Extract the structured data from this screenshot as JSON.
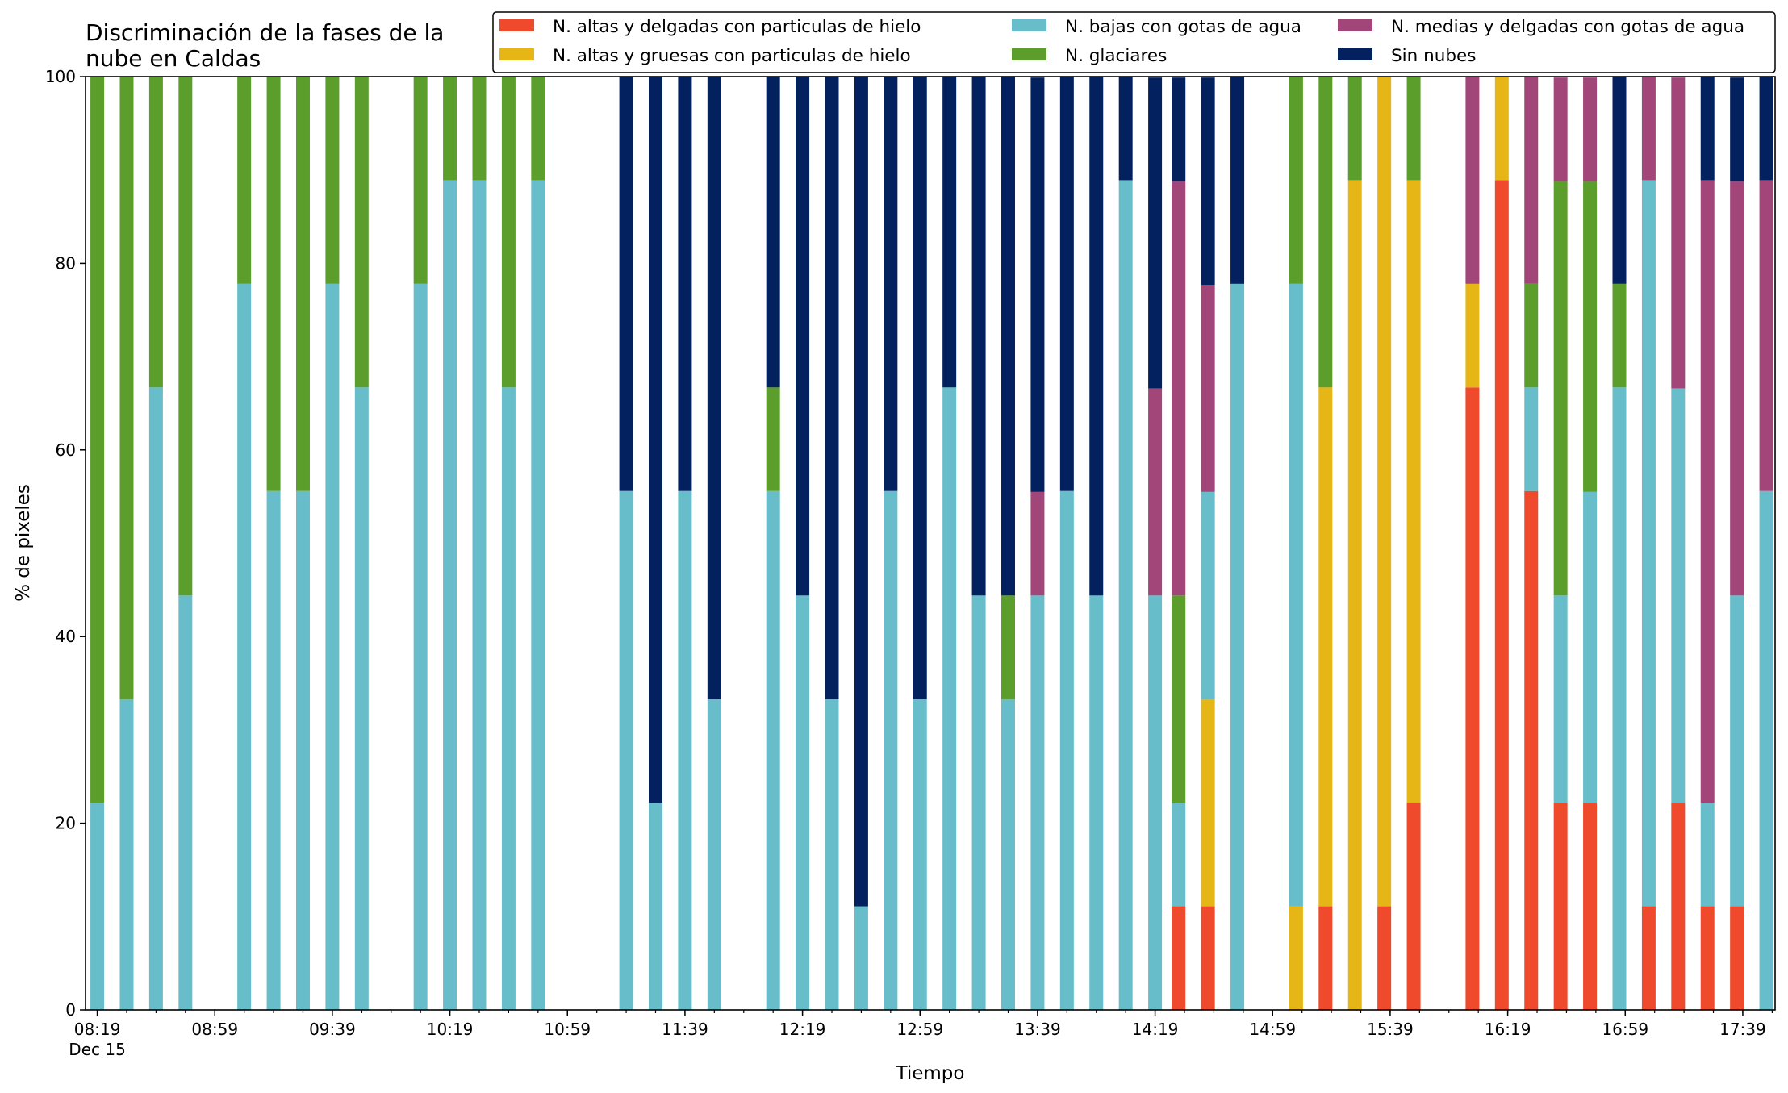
{
  "chart_data": {
    "type": "bar",
    "stacked": true,
    "title_lines": [
      "Discriminación de la fases de la",
      "nube en Caldas"
    ],
    "xlabel": "Tiempo",
    "ylabel": "% de pixeles",
    "ylim": [
      0,
      100
    ],
    "y_ticks": [
      0,
      20,
      40,
      60,
      80,
      100
    ],
    "x_range_minutes": [
      495,
      1070
    ],
    "x_tick_labels": [
      {
        "t": 499,
        "label": "08:19",
        "sub": "Dec 15"
      },
      {
        "t": 539,
        "label": "08:59"
      },
      {
        "t": 579,
        "label": "09:39"
      },
      {
        "t": 619,
        "label": "10:19"
      },
      {
        "t": 659,
        "label": "10:59"
      },
      {
        "t": 699,
        "label": "11:39"
      },
      {
        "t": 739,
        "label": "12:19"
      },
      {
        "t": 779,
        "label": "12:59"
      },
      {
        "t": 819,
        "label": "13:39"
      },
      {
        "t": 859,
        "label": "14:19"
      },
      {
        "t": 899,
        "label": "14:59"
      },
      {
        "t": 939,
        "label": "15:39"
      },
      {
        "t": 979,
        "label": "16:19"
      },
      {
        "t": 1019,
        "label": "16:59"
      },
      {
        "t": 1059,
        "label": "17:39"
      }
    ],
    "grid": false,
    "legend_position": "top-right",
    "legend": [
      {
        "key": "alt_delg",
        "label": "N. altas y delgadas con particulas de hielo"
      },
      {
        "key": "alt_grue",
        "label": "N. altas y gruesas con particulas de hielo"
      },
      {
        "key": "bajas",
        "label": "N. bajas con gotas de agua"
      },
      {
        "key": "glaciares",
        "label": "N. glaciares"
      },
      {
        "key": "medias",
        "label": "N. medias y delgadas con gotas de agua"
      },
      {
        "key": "sin",
        "label": "Sin nubes"
      }
    ],
    "stack_order": [
      "alt_delg",
      "alt_grue",
      "bajas",
      "glaciares",
      "medias",
      "sin"
    ],
    "colors": {
      "alt_delg": "#ee4a2b",
      "alt_grue": "#e6b616",
      "bajas": "#67bdc9",
      "glaciares": "#5c9e2c",
      "medias": "#a24679",
      "sin": "#04215f"
    },
    "bars": [
      {
        "t": 499,
        "alt_delg": 0,
        "alt_grue": 0,
        "bajas": 22.2,
        "glaciares": 77.8,
        "medias": 0,
        "sin": 0
      },
      {
        "t": 509,
        "alt_delg": 0,
        "alt_grue": 0,
        "bajas": 33.3,
        "glaciares": 66.7,
        "medias": 0,
        "sin": 0
      },
      {
        "t": 519,
        "alt_delg": 0,
        "alt_grue": 0,
        "bajas": 66.7,
        "glaciares": 33.3,
        "medias": 0,
        "sin": 0
      },
      {
        "t": 529,
        "alt_delg": 0,
        "alt_grue": 0,
        "bajas": 44.4,
        "glaciares": 55.6,
        "medias": 0,
        "sin": 0
      },
      {
        "t": 549,
        "alt_delg": 0,
        "alt_grue": 0,
        "bajas": 77.8,
        "glaciares": 22.2,
        "medias": 0,
        "sin": 0
      },
      {
        "t": 559,
        "alt_delg": 0,
        "alt_grue": 0,
        "bajas": 55.6,
        "glaciares": 44.4,
        "medias": 0,
        "sin": 0
      },
      {
        "t": 569,
        "alt_delg": 0,
        "alt_grue": 0,
        "bajas": 55.6,
        "glaciares": 44.4,
        "medias": 0,
        "sin": 0
      },
      {
        "t": 579,
        "alt_delg": 0,
        "alt_grue": 0,
        "bajas": 77.8,
        "glaciares": 22.2,
        "medias": 0,
        "sin": 0
      },
      {
        "t": 589,
        "alt_delg": 0,
        "alt_grue": 0,
        "bajas": 66.7,
        "glaciares": 33.3,
        "medias": 0,
        "sin": 0
      },
      {
        "t": 609,
        "alt_delg": 0,
        "alt_grue": 0,
        "bajas": 77.8,
        "glaciares": 22.2,
        "medias": 0,
        "sin": 0
      },
      {
        "t": 619,
        "alt_delg": 0,
        "alt_grue": 0,
        "bajas": 88.9,
        "glaciares": 11.1,
        "medias": 0,
        "sin": 0
      },
      {
        "t": 629,
        "alt_delg": 0,
        "alt_grue": 0,
        "bajas": 88.9,
        "glaciares": 11.1,
        "medias": 0,
        "sin": 0
      },
      {
        "t": 639,
        "alt_delg": 0,
        "alt_grue": 0,
        "bajas": 66.7,
        "glaciares": 33.3,
        "medias": 0,
        "sin": 0
      },
      {
        "t": 649,
        "alt_delg": 0,
        "alt_grue": 0,
        "bajas": 88.9,
        "glaciares": 11.1,
        "medias": 0,
        "sin": 0
      },
      {
        "t": 679,
        "alt_delg": 0,
        "alt_grue": 0,
        "bajas": 55.6,
        "glaciares": 0,
        "medias": 0,
        "sin": 44.4
      },
      {
        "t": 689,
        "alt_delg": 0,
        "alt_grue": 0,
        "bajas": 22.2,
        "glaciares": 0,
        "medias": 0,
        "sin": 77.8
      },
      {
        "t": 699,
        "alt_delg": 0,
        "alt_grue": 0,
        "bajas": 55.6,
        "glaciares": 0,
        "medias": 0,
        "sin": 44.4
      },
      {
        "t": 709,
        "alt_delg": 0,
        "alt_grue": 0,
        "bajas": 33.3,
        "glaciares": 0,
        "medias": 0,
        "sin": 66.7
      },
      {
        "t": 729,
        "alt_delg": 0,
        "alt_grue": 0,
        "bajas": 55.6,
        "glaciares": 11.1,
        "medias": 0,
        "sin": 33.3
      },
      {
        "t": 739,
        "alt_delg": 0,
        "alt_grue": 0,
        "bajas": 44.4,
        "glaciares": 0,
        "medias": 0,
        "sin": 55.6
      },
      {
        "t": 749,
        "alt_delg": 0,
        "alt_grue": 0,
        "bajas": 33.3,
        "glaciares": 0,
        "medias": 0,
        "sin": 66.7
      },
      {
        "t": 759,
        "alt_delg": 0,
        "alt_grue": 0,
        "bajas": 11.1,
        "glaciares": 0,
        "medias": 0,
        "sin": 88.9
      },
      {
        "t": 769,
        "alt_delg": 0,
        "alt_grue": 0,
        "bajas": 55.6,
        "glaciares": 0,
        "medias": 0,
        "sin": 44.4
      },
      {
        "t": 779,
        "alt_delg": 0,
        "alt_grue": 0,
        "bajas": 33.3,
        "glaciares": 0,
        "medias": 0,
        "sin": 66.7
      },
      {
        "t": 789,
        "alt_delg": 0,
        "alt_grue": 0,
        "bajas": 66.7,
        "glaciares": 0,
        "medias": 0,
        "sin": 33.3
      },
      {
        "t": 799,
        "alt_delg": 0,
        "alt_grue": 0,
        "bajas": 44.4,
        "glaciares": 0,
        "medias": 0,
        "sin": 55.6
      },
      {
        "t": 809,
        "alt_delg": 0,
        "alt_grue": 0,
        "bajas": 33.3,
        "glaciares": 11.1,
        "medias": 0,
        "sin": 55.6
      },
      {
        "t": 819,
        "alt_delg": 0,
        "alt_grue": 0,
        "bajas": 44.4,
        "glaciares": 0,
        "medias": 11.1,
        "sin": 44.4
      },
      {
        "t": 829,
        "alt_delg": 0,
        "alt_grue": 0,
        "bajas": 55.6,
        "glaciares": 0,
        "medias": 0,
        "sin": 44.4
      },
      {
        "t": 839,
        "alt_delg": 0,
        "alt_grue": 0,
        "bajas": 44.4,
        "glaciares": 0,
        "medias": 0,
        "sin": 55.6
      },
      {
        "t": 849,
        "alt_delg": 0,
        "alt_grue": 0,
        "bajas": 88.9,
        "glaciares": 0,
        "medias": 0,
        "sin": 11.1
      },
      {
        "t": 859,
        "alt_delg": 0,
        "alt_grue": 0,
        "bajas": 44.4,
        "glaciares": 0,
        "medias": 22.2,
        "sin": 33.3
      },
      {
        "t": 867,
        "alt_delg": 11.1,
        "alt_grue": 0,
        "bajas": 11.1,
        "glaciares": 22.2,
        "medias": 44.4,
        "sin": 11.1
      },
      {
        "t": 877,
        "alt_delg": 11.1,
        "alt_grue": 22.2,
        "bajas": 22.2,
        "glaciares": 0,
        "medias": 22.2,
        "sin": 22.2
      },
      {
        "t": 887,
        "alt_delg": 0,
        "alt_grue": 0,
        "bajas": 77.8,
        "glaciares": 0,
        "medias": 0,
        "sin": 22.2
      },
      {
        "t": 907,
        "alt_delg": 0,
        "alt_grue": 11.1,
        "bajas": 66.7,
        "glaciares": 22.2,
        "medias": 0,
        "sin": 0
      },
      {
        "t": 917,
        "alt_delg": 11.1,
        "alt_grue": 55.6,
        "bajas": 0,
        "glaciares": 33.3,
        "medias": 0,
        "sin": 0
      },
      {
        "t": 927,
        "alt_delg": 0,
        "alt_grue": 88.9,
        "bajas": 0,
        "glaciares": 11.1,
        "medias": 0,
        "sin": 0
      },
      {
        "t": 937,
        "alt_delg": 11.1,
        "alt_grue": 88.9,
        "bajas": 0,
        "glaciares": 0,
        "medias": 0,
        "sin": 0
      },
      {
        "t": 947,
        "alt_delg": 22.2,
        "alt_grue": 66.7,
        "bajas": 0,
        "glaciares": 11.1,
        "medias": 0,
        "sin": 0
      },
      {
        "t": 967,
        "alt_delg": 66.7,
        "alt_grue": 11.1,
        "bajas": 0,
        "glaciares": 0,
        "medias": 22.2,
        "sin": 0
      },
      {
        "t": 977,
        "alt_delg": 88.9,
        "alt_grue": 11.1,
        "bajas": 0,
        "glaciares": 0,
        "medias": 0,
        "sin": 0
      },
      {
        "t": 987,
        "alt_delg": 55.6,
        "alt_grue": 0,
        "bajas": 11.1,
        "glaciares": 11.1,
        "medias": 22.2,
        "sin": 0
      },
      {
        "t": 997,
        "alt_delg": 22.2,
        "alt_grue": 0,
        "bajas": 22.2,
        "glaciares": 44.4,
        "medias": 11.1,
        "sin": 0
      },
      {
        "t": 1007,
        "alt_delg": 22.2,
        "alt_grue": 0,
        "bajas": 33.3,
        "glaciares": 33.3,
        "medias": 11.1,
        "sin": 0
      },
      {
        "t": 1017,
        "alt_delg": 0,
        "alt_grue": 0,
        "bajas": 66.7,
        "glaciares": 11.1,
        "medias": 0,
        "sin": 22.2
      },
      {
        "t": 1027,
        "alt_delg": 11.1,
        "alt_grue": 0,
        "bajas": 77.8,
        "glaciares": 0,
        "medias": 11.1,
        "sin": 0
      },
      {
        "t": 1037,
        "alt_delg": 22.2,
        "alt_grue": 0,
        "bajas": 44.4,
        "glaciares": 0,
        "medias": 33.3,
        "sin": 0
      },
      {
        "t": 1047,
        "alt_delg": 11.1,
        "alt_grue": 0,
        "bajas": 11.1,
        "glaciares": 0,
        "medias": 66.7,
        "sin": 11.1
      },
      {
        "t": 1057,
        "alt_delg": 11.1,
        "alt_grue": 0,
        "bajas": 33.3,
        "glaciares": 0,
        "medias": 44.4,
        "sin": 11.1
      },
      {
        "t": 1067,
        "alt_delg": 0,
        "alt_grue": 0,
        "bajas": 55.6,
        "glaciares": 0,
        "medias": 33.3,
        "sin": 11.1
      }
    ]
  }
}
